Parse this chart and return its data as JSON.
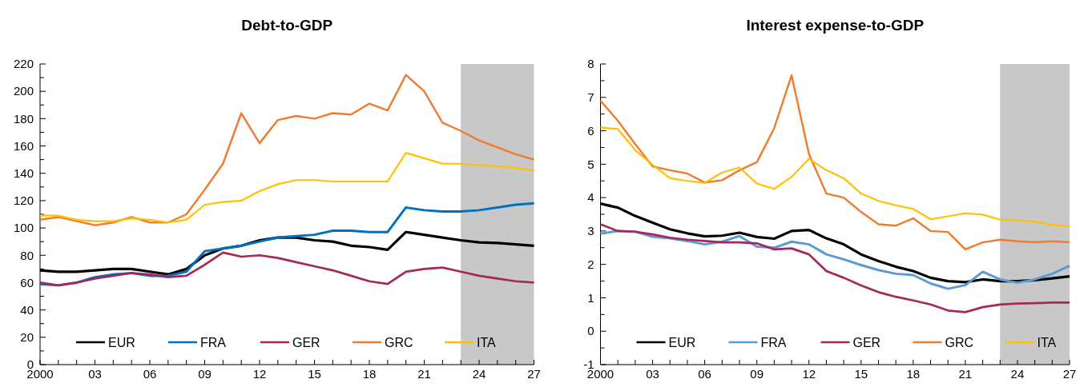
{
  "chart_data": [
    {
      "type": "line",
      "title": "Debt-to-GDP",
      "x": [
        2000,
        2001,
        2002,
        2003,
        2004,
        2005,
        2006,
        2007,
        2008,
        2009,
        2010,
        2011,
        2012,
        2013,
        2014,
        2015,
        2016,
        2017,
        2018,
        2019,
        2020,
        2021,
        2022,
        2023,
        2024,
        2025,
        2026,
        2027
      ],
      "series": [
        {
          "name": "EUR",
          "color": "#000000",
          "values": [
            69,
            68,
            68,
            69,
            70,
            70,
            68,
            66,
            70,
            80,
            85,
            87,
            91,
            93,
            93,
            91,
            90,
            87,
            86,
            84,
            97,
            95,
            93,
            91,
            89.5,
            89,
            88,
            87
          ]
        },
        {
          "name": "FRA",
          "color": "#0070c0",
          "values": [
            59,
            58,
            60,
            64,
            66,
            67,
            65,
            65,
            68,
            83,
            85,
            87,
            90,
            93,
            94,
            95,
            98,
            98,
            97,
            97,
            115,
            113,
            112,
            112,
            113,
            115,
            117,
            118
          ]
        },
        {
          "name": "GER",
          "color": "#a5285a",
          "values": [
            60,
            58,
            60,
            63,
            65,
            67,
            66,
            64,
            65,
            73,
            82,
            79,
            80,
            78,
            75,
            72,
            69,
            65,
            61,
            59,
            68,
            70,
            71,
            68,
            65,
            63,
            61,
            60
          ]
        },
        {
          "name": "GRC",
          "color": "#ed7d31",
          "values": [
            106,
            108,
            105,
            102,
            104,
            108,
            104,
            104,
            110,
            128,
            147,
            184,
            162,
            179,
            182,
            180,
            184,
            183,
            191,
            186,
            212,
            200,
            177,
            171,
            164,
            159,
            154,
            150
          ]
        },
        {
          "name": "ITA",
          "color": "#ffc000",
          "values": [
            109,
            109,
            106,
            105,
            105,
            107,
            106,
            104,
            106,
            117,
            119,
            120,
            127,
            132,
            135,
            135,
            134,
            134,
            134,
            134,
            155,
            151,
            147,
            147,
            146,
            145,
            144,
            142
          ]
        }
      ],
      "xlim": [
        2000,
        2027
      ],
      "xticks": [
        {
          "value": 2000,
          "label": "2000"
        },
        {
          "value": 2001,
          "label": null
        },
        {
          "value": 2002,
          "label": null
        },
        {
          "value": 2003,
          "label": "03"
        },
        {
          "value": 2004,
          "label": null
        },
        {
          "value": 2005,
          "label": null
        },
        {
          "value": 2006,
          "label": "06"
        },
        {
          "value": 2007,
          "label": null
        },
        {
          "value": 2008,
          "label": null
        },
        {
          "value": 2009,
          "label": "09"
        },
        {
          "value": 2010,
          "label": null
        },
        {
          "value": 2011,
          "label": null
        },
        {
          "value": 2012,
          "label": "12"
        },
        {
          "value": 2013,
          "label": null
        },
        {
          "value": 2014,
          "label": null
        },
        {
          "value": 2015,
          "label": "15"
        },
        {
          "value": 2016,
          "label": null
        },
        {
          "value": 2017,
          "label": null
        },
        {
          "value": 2018,
          "label": "18"
        },
        {
          "value": 2019,
          "label": null
        },
        {
          "value": 2020,
          "label": null
        },
        {
          "value": 2021,
          "label": "21"
        },
        {
          "value": 2022,
          "label": null
        },
        {
          "value": 2023,
          "label": null
        },
        {
          "value": 2024,
          "label": "24"
        },
        {
          "value": 2025,
          "label": null
        },
        {
          "value": 2026,
          "label": null
        },
        {
          "value": 2027,
          "label": "27"
        }
      ],
      "ylim": [
        0,
        220
      ],
      "yticks": [
        0,
        {
          "value": 10,
          "label": null
        },
        20,
        {
          "value": 30,
          "label": null
        },
        40,
        {
          "value": 50,
          "label": null
        },
        60,
        {
          "value": 70,
          "label": null
        },
        80,
        {
          "value": 90,
          "label": null
        },
        100,
        {
          "value": 110,
          "label": null
        },
        120,
        {
          "value": 130,
          "label": null
        },
        140,
        {
          "value": 150,
          "label": null
        },
        160,
        {
          "value": 170,
          "label": null
        },
        180,
        {
          "value": 190,
          "label": null
        },
        200,
        {
          "value": 210,
          "label": null
        },
        220
      ],
      "bands": [
        {
          "axis": "x",
          "from": 2023,
          "to": 2027,
          "color": "#c8c8c8"
        }
      ],
      "legend": "bottom left",
      "grid": false
    },
    {
      "type": "line",
      "title": "Interest expense-to-GDP",
      "x": [
        2000,
        2001,
        2002,
        2003,
        2004,
        2005,
        2006,
        2007,
        2008,
        2009,
        2010,
        2011,
        2012,
        2013,
        2014,
        2015,
        2016,
        2017,
        2018,
        2019,
        2020,
        2021,
        2022,
        2023,
        2024,
        2025,
        2026,
        2027
      ],
      "series": [
        {
          "name": "EUR",
          "color": "#000000",
          "values": [
            3.82,
            3.7,
            3.45,
            3.25,
            3.05,
            2.93,
            2.84,
            2.86,
            2.95,
            2.82,
            2.77,
            3.0,
            3.03,
            2.78,
            2.6,
            2.3,
            2.1,
            1.93,
            1.8,
            1.6,
            1.5,
            1.47,
            1.55,
            1.5,
            1.5,
            1.53,
            1.58,
            1.64
          ]
        },
        {
          "name": "FRA",
          "color": "#5b9bd5",
          "values": [
            2.92,
            3.0,
            2.98,
            2.83,
            2.78,
            2.7,
            2.6,
            2.68,
            2.85,
            2.53,
            2.5,
            2.68,
            2.6,
            2.3,
            2.15,
            1.98,
            1.83,
            1.72,
            1.68,
            1.43,
            1.27,
            1.38,
            1.78,
            1.55,
            1.45,
            1.55,
            1.72,
            1.96
          ]
        },
        {
          "name": "GER",
          "color": "#a5285a",
          "values": [
            3.2,
            3.0,
            2.98,
            2.9,
            2.8,
            2.74,
            2.7,
            2.66,
            2.66,
            2.63,
            2.45,
            2.48,
            2.3,
            1.8,
            1.6,
            1.37,
            1.17,
            1.03,
            0.92,
            0.8,
            0.62,
            0.57,
            0.72,
            0.8,
            0.83,
            0.84,
            0.86,
            0.86
          ]
        },
        {
          "name": "GRC",
          "color": "#ed7d31",
          "values": [
            6.9,
            6.3,
            5.6,
            4.93,
            4.82,
            4.72,
            4.45,
            4.52,
            4.82,
            5.06,
            6.08,
            7.66,
            5.3,
            4.12,
            4.0,
            3.57,
            3.2,
            3.16,
            3.38,
            3.0,
            2.97,
            2.45,
            2.66,
            2.74,
            2.69,
            2.66,
            2.69,
            2.66
          ]
        },
        {
          "name": "ITA",
          "color": "#ffc000",
          "values": [
            6.1,
            6.05,
            5.42,
            4.98,
            4.58,
            4.5,
            4.44,
            4.75,
            4.9,
            4.42,
            4.26,
            4.62,
            5.16,
            4.82,
            4.58,
            4.12,
            3.9,
            3.77,
            3.66,
            3.35,
            3.44,
            3.53,
            3.49,
            3.34,
            3.32,
            3.28,
            3.18,
            3.15
          ]
        }
      ],
      "xlim": [
        2000,
        2027
      ],
      "xticks": [
        {
          "value": 2000,
          "label": "2000"
        },
        {
          "value": 2001,
          "label": null
        },
        {
          "value": 2002,
          "label": null
        },
        {
          "value": 2003,
          "label": "03"
        },
        {
          "value": 2004,
          "label": null
        },
        {
          "value": 2005,
          "label": null
        },
        {
          "value": 2006,
          "label": "06"
        },
        {
          "value": 2007,
          "label": null
        },
        {
          "value": 2008,
          "label": null
        },
        {
          "value": 2009,
          "label": "09"
        },
        {
          "value": 2010,
          "label": null
        },
        {
          "value": 2011,
          "label": null
        },
        {
          "value": 2012,
          "label": "12"
        },
        {
          "value": 2013,
          "label": null
        },
        {
          "value": 2014,
          "label": null
        },
        {
          "value": 2015,
          "label": "15"
        },
        {
          "value": 2016,
          "label": null
        },
        {
          "value": 2017,
          "label": null
        },
        {
          "value": 2018,
          "label": "18"
        },
        {
          "value": 2019,
          "label": null
        },
        {
          "value": 2020,
          "label": null
        },
        {
          "value": 2021,
          "label": "21"
        },
        {
          "value": 2022,
          "label": null
        },
        {
          "value": 2023,
          "label": null
        },
        {
          "value": 2024,
          "label": "24"
        },
        {
          "value": 2025,
          "label": null
        },
        {
          "value": 2026,
          "label": null
        },
        {
          "value": 2027,
          "label": "27"
        }
      ],
      "ylim": [
        -1,
        8
      ],
      "yticks": [
        -1,
        {
          "value": -0.5,
          "label": null
        },
        0,
        {
          "value": 0.5,
          "label": null
        },
        1,
        {
          "value": 1.5,
          "label": null
        },
        2,
        {
          "value": 2.5,
          "label": null
        },
        3,
        {
          "value": 3.5,
          "label": null
        },
        4,
        {
          "value": 4.5,
          "label": null
        },
        5,
        {
          "value": 5.5,
          "label": null
        },
        6,
        {
          "value": 6.5,
          "label": null
        },
        7,
        {
          "value": 7.5,
          "label": null
        },
        8
      ],
      "bands": [
        {
          "axis": "x",
          "from": 2023,
          "to": 2027,
          "color": "#c8c8c8"
        }
      ],
      "legend": "bottom left",
      "grid": false
    }
  ]
}
